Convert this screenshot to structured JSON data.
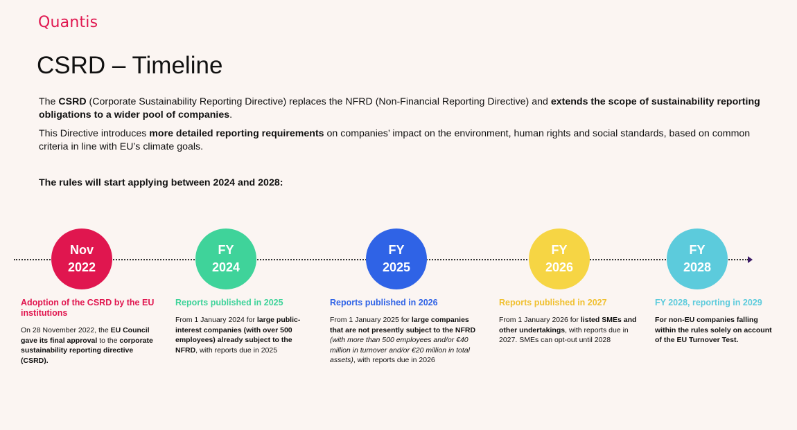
{
  "brand": {
    "logo": "Quantis"
  },
  "title": "CSRD – Timeline",
  "intro": {
    "p1": {
      "t1": "The ",
      "b1": "CSRD",
      "t2": " (Corporate Sustainability Reporting Directive) replaces the NFRD (Non-Financial Reporting Directive) and ",
      "b2": "extends the scope of sustainability reporting obligations to a wider pool of companies",
      "t3": "."
    },
    "p2": {
      "t1": "This Directive introduces ",
      "b1": "more detailed reporting requirements",
      "t2": " on companies’ impact on the environment, human rights and social standards, based on common criteria in line with EU’s climate goals."
    }
  },
  "lead": "The rules will start applying between 2024 and 2028:",
  "colors": {
    "accent": "#e0164f",
    "m1": "#e0164f",
    "m2": "#3fd39a",
    "m3": "#2f63e6",
    "m4": "#f6d544",
    "m5": "#5ccbdc",
    "heading4": "#f0c030"
  },
  "milestones": [
    {
      "l1": "Nov",
      "l2": "2022",
      "heading": "Adoption of the CSRD by the EU institutions",
      "body": {
        "a": "On 28 November 2022, the ",
        "b": "EU Council gave its final approval",
        "c": " to the ",
        "d": "corporate sustainability reporting directive (CSRD)."
      }
    },
    {
      "l1": "FY",
      "l2": "2024",
      "heading": "Reports published in 2025",
      "body": {
        "a": "From 1 January 2024 for ",
        "b": "large public-interest companies (with over 500 employees) already subject to the NFRD",
        ", with reports due in 2025": "",
        "c": ", with reports due in 2025"
      }
    },
    {
      "l1": "FY",
      "l2": "2025",
      "heading": "Reports published in 2026",
      "body": {
        "a": "From 1 January 2025 for ",
        "b": "large companies that are not presently subject to the NFRD",
        "c": "(with more than 500 employees and/or €40 million in turnover and/or €20 million in total assets)",
        "d": ", with reports due in 2026"
      }
    },
    {
      "l1": "FY",
      "l2": "2026",
      "heading": "Reports published in 2027",
      "body": {
        "a": "From 1 January 2026 for ",
        "b": "listed SMEs and other undertakings",
        ",": "",
        "c": ", with reports due in 2027. SMEs can opt-out until 2028"
      }
    },
    {
      "l1": "FY",
      "l2": "2028",
      "heading": "FY 2028, reporting in 2029",
      "body": {
        "b": "For non-EU companies falling within the rules solely on account of the EU Turnover Test."
      }
    }
  ]
}
